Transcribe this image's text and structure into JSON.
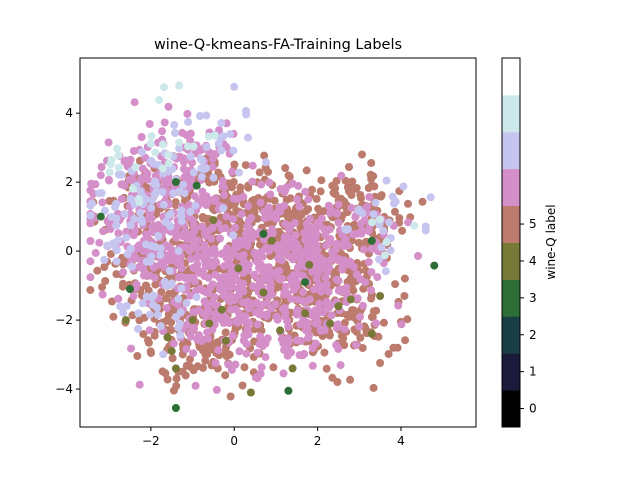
{
  "chart_data": {
    "type": "scatter",
    "title": "wine-Q-kmeans-FA-Training Labels",
    "xlabel": "",
    "ylabel": "",
    "xlim": [
      -3.7,
      5.8
    ],
    "ylim": [
      -5.1,
      5.6
    ],
    "xticks": [
      "−2",
      "0",
      "2",
      "4"
    ],
    "xtick_values": [
      -2,
      0,
      2,
      4
    ],
    "yticks": [
      "−4",
      "−2",
      "0",
      "2",
      "4"
    ],
    "ytick_values": [
      -4,
      -2,
      0,
      2,
      4
    ],
    "grid": false,
    "colorbar": {
      "label": "wine-Q label",
      "range": [
        -0.5,
        9.5
      ],
      "ticks": [
        "0",
        "1",
        "2",
        "3",
        "4",
        "5"
      ],
      "tick_values": [
        0,
        1,
        2,
        3,
        4,
        5
      ],
      "colors": [
        "#000000",
        "#1c1a3a",
        "#173f45",
        "#2c6e35",
        "#777a37",
        "#bc7b6d",
        "#d48fc8",
        "#c6c5f0",
        "#cde8ea",
        "#ffffff"
      ]
    },
    "series": [
      {
        "label_value": 4,
        "color": "#777a37",
        "points": [
          [
            -2.6,
            -2.0
          ],
          [
            -1.6,
            -2.5
          ],
          [
            -1.5,
            -2.9
          ],
          [
            -1.0,
            -2.0
          ],
          [
            -0.6,
            -2.1
          ],
          [
            -0.3,
            -1.7
          ],
          [
            0.1,
            -0.5
          ],
          [
            0.4,
            -4.1
          ],
          [
            0.7,
            -1.2
          ],
          [
            1.1,
            -2.3
          ],
          [
            1.4,
            -3.4
          ],
          [
            1.7,
            -1.8
          ],
          [
            2.3,
            -2.1
          ],
          [
            2.8,
            -1.4
          ],
          [
            3.3,
            -2.4
          ],
          [
            3.5,
            -1.3
          ],
          [
            0.9,
            0.3
          ],
          [
            -0.5,
            0.9
          ],
          [
            1.8,
            -0.4
          ],
          [
            -1.4,
            -3.4
          ],
          [
            -0.2,
            -2.6
          ],
          [
            2.5,
            -1.6
          ]
        ]
      },
      {
        "label_value": 3,
        "color": "#2c6e35",
        "points": [
          [
            -3.2,
            1.0
          ],
          [
            -1.4,
            -4.55
          ],
          [
            -1.4,
            2.0
          ],
          [
            0.7,
            0.5
          ],
          [
            1.3,
            -4.05
          ],
          [
            4.8,
            -0.42
          ],
          [
            3.3,
            0.3
          ],
          [
            -0.9,
            1.9
          ],
          [
            -2.5,
            -1.1
          ],
          [
            1.7,
            -0.9
          ]
        ]
      },
      {
        "label_value": 5,
        "color": "#bc7b6d",
        "centers": [
          [
            -1.7,
            -0.5
          ],
          [
            0.5,
            -1.2
          ],
          [
            2.0,
            -0.8
          ],
          [
            -0.8,
            -2.4
          ],
          [
            1.4,
            0.6
          ],
          [
            3.0,
            0.9
          ],
          [
            -1.2,
            1.4
          ],
          [
            2.5,
            -2.0
          ],
          [
            0.0,
            1.0
          ]
        ],
        "spread": [
          0.75,
          0.75
        ],
        "count": 1100
      },
      {
        "label_value": 6,
        "color": "#d48fc8",
        "centers": [
          [
            -1.9,
            0.5
          ],
          [
            -0.6,
            -0.4
          ],
          [
            0.8,
            0.2
          ],
          [
            2.2,
            0.4
          ],
          [
            -1.3,
            2.2
          ],
          [
            -0.2,
            -2.0
          ],
          [
            1.6,
            -1.6
          ]
        ],
        "spread": [
          0.85,
          0.85
        ],
        "count": 950
      },
      {
        "label_value": 7,
        "color": "#c6c5f0",
        "centers": [
          [
            -2.3,
            2.0
          ],
          [
            -1.6,
            1.2
          ],
          [
            -2.6,
            0.4
          ],
          [
            3.7,
            1.0
          ],
          [
            -0.5,
            3.0
          ],
          [
            -1.8,
            -1.5
          ]
        ],
        "spread": [
          0.5,
          0.6
        ],
        "count": 170
      },
      {
        "label_value": 8,
        "color": "#cde8ea",
        "centers": [
          [
            -2.6,
            2.5
          ],
          [
            -2.0,
            2.9
          ],
          [
            4.0,
            0.6
          ],
          [
            -1.0,
            4.4
          ]
        ],
        "spread": [
          0.4,
          0.4
        ],
        "count": 30
      }
    ]
  }
}
